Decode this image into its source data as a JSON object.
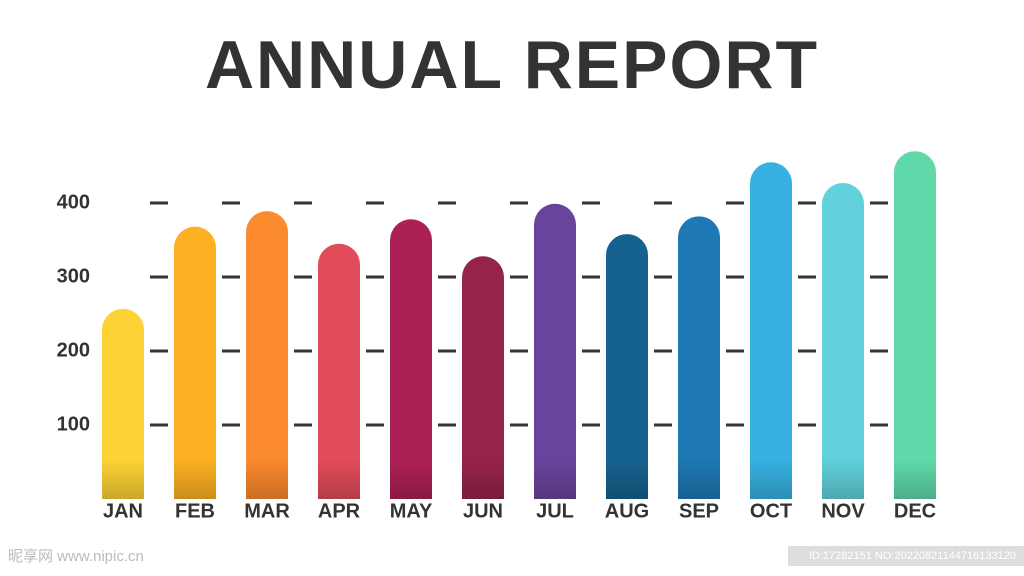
{
  "chart_data": {
    "type": "bar",
    "title": "ANNUAL REPORT",
    "categories": [
      "JAN",
      "FEB",
      "MAR",
      "APR",
      "MAY",
      "JUN",
      "JUL",
      "AUG",
      "SEP",
      "OCT",
      "NOV",
      "DEC"
    ],
    "values": [
      257,
      368,
      389,
      345,
      378,
      328,
      399,
      358,
      382,
      455,
      427,
      470
    ],
    "colors": [
      "#fdd235",
      "#fdb022",
      "#fc8a2e",
      "#e24b59",
      "#ad2055",
      "#962448",
      "#6a449c",
      "#16628f",
      "#1d78b3",
      "#37b1e2",
      "#61d1dc",
      "#5fd9aa"
    ],
    "ylim": [
      0,
      500
    ],
    "yticks": [
      100,
      200,
      300,
      400
    ],
    "grid": true
  },
  "watermark": {
    "site": "昵享网 www.nipic.cn",
    "id": "ID:17282151 NO:20220821144716133120"
  }
}
